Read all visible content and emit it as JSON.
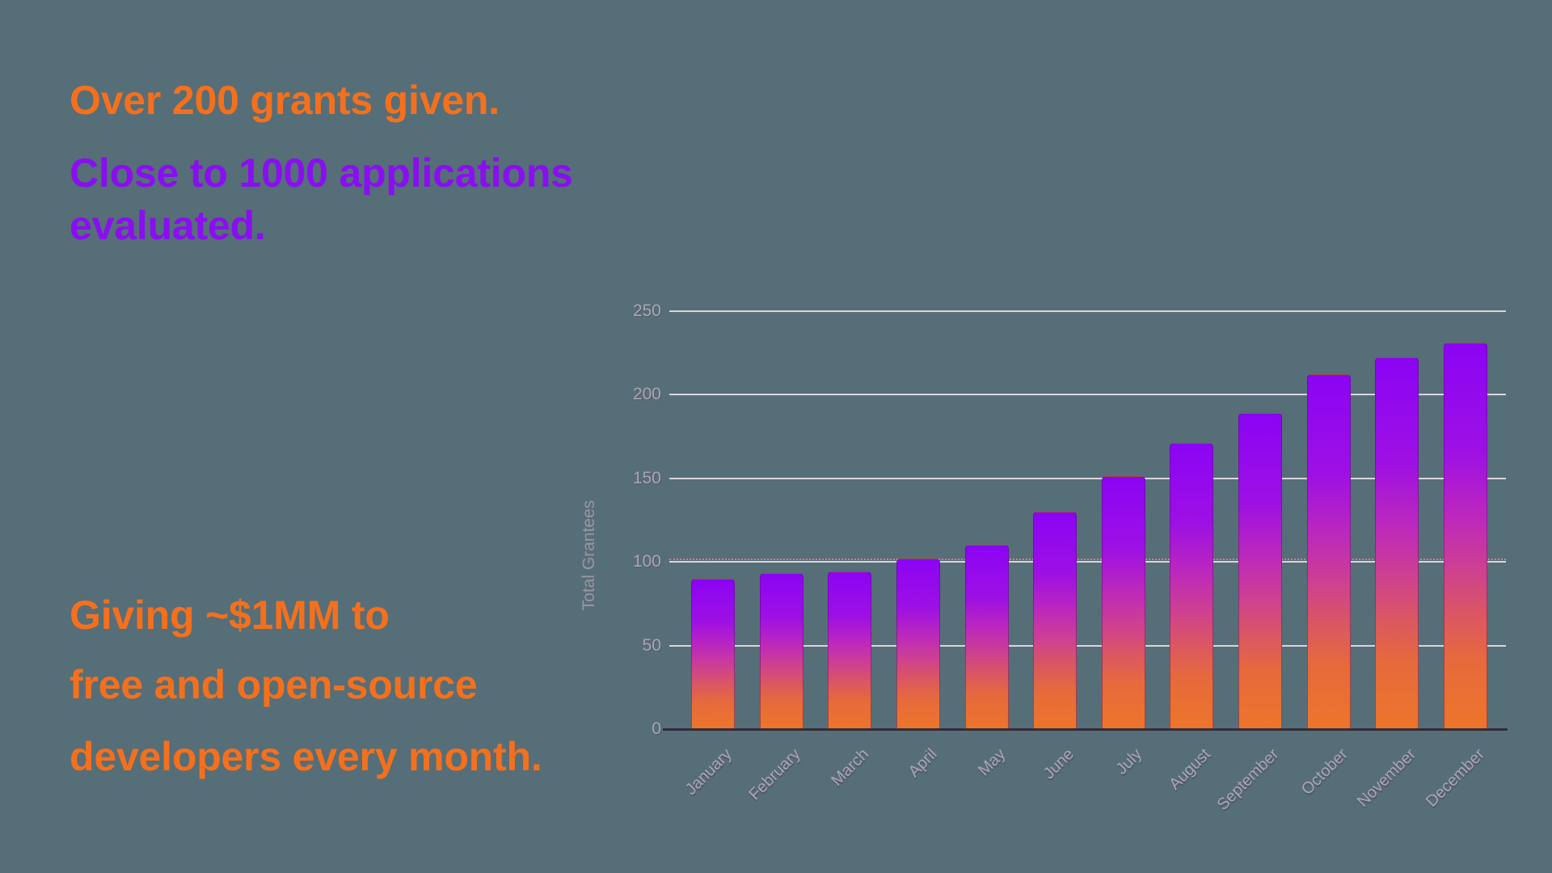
{
  "colors": {
    "background": "#566e78",
    "orange_text": "#f5701c",
    "purple_text": "#8a0ef2"
  },
  "text_blocks": {
    "orange_top": "Over 200 grants given.",
    "purple_line1": "Close to 1000 applications",
    "purple_line2": "evaluated.",
    "orange_bottom1": "Giving ~$1MM to",
    "orange_bottom2": "free and open-source",
    "orange_bottom3": "developers every month."
  },
  "chart_data": {
    "type": "bar",
    "title": "",
    "xlabel": "",
    "ylabel": "Total Grantees",
    "categories": [
      "January",
      "February",
      "March",
      "April",
      "May",
      "June",
      "July",
      "August",
      "September",
      "October",
      "November",
      "December"
    ],
    "values": [
      90,
      93,
      94,
      102,
      110,
      130,
      151,
      171,
      189,
      212,
      222,
      231
    ],
    "ylim": [
      0,
      250
    ],
    "yticks": [
      0,
      50,
      100,
      150,
      200,
      250
    ],
    "grid": true,
    "legend": false,
    "x_tick_rotation_deg": -45,
    "gridline_color": "#d8d6da",
    "axis_color": "#332d3a",
    "tick_color": "#aba6ae",
    "axis_title_color": "#9b96a1",
    "annotation_line": {
      "y": 100,
      "style": "dotted",
      "color": "#f2858d"
    },
    "bar_border_color": "rgba(74,16,92,0.45)",
    "bar_gradient_stops": [
      {
        "color": "#8b04f4",
        "pos": 0
      },
      {
        "color": "#9d10e4",
        "pos": 28
      },
      {
        "color": "#bc28bc",
        "pos": 45
      },
      {
        "color": "#cd3f93",
        "pos": 58
      },
      {
        "color": "#da5663",
        "pos": 70
      },
      {
        "color": "#e66a3c",
        "pos": 82
      },
      {
        "color": "#ed752a",
        "pos": 100
      }
    ]
  }
}
